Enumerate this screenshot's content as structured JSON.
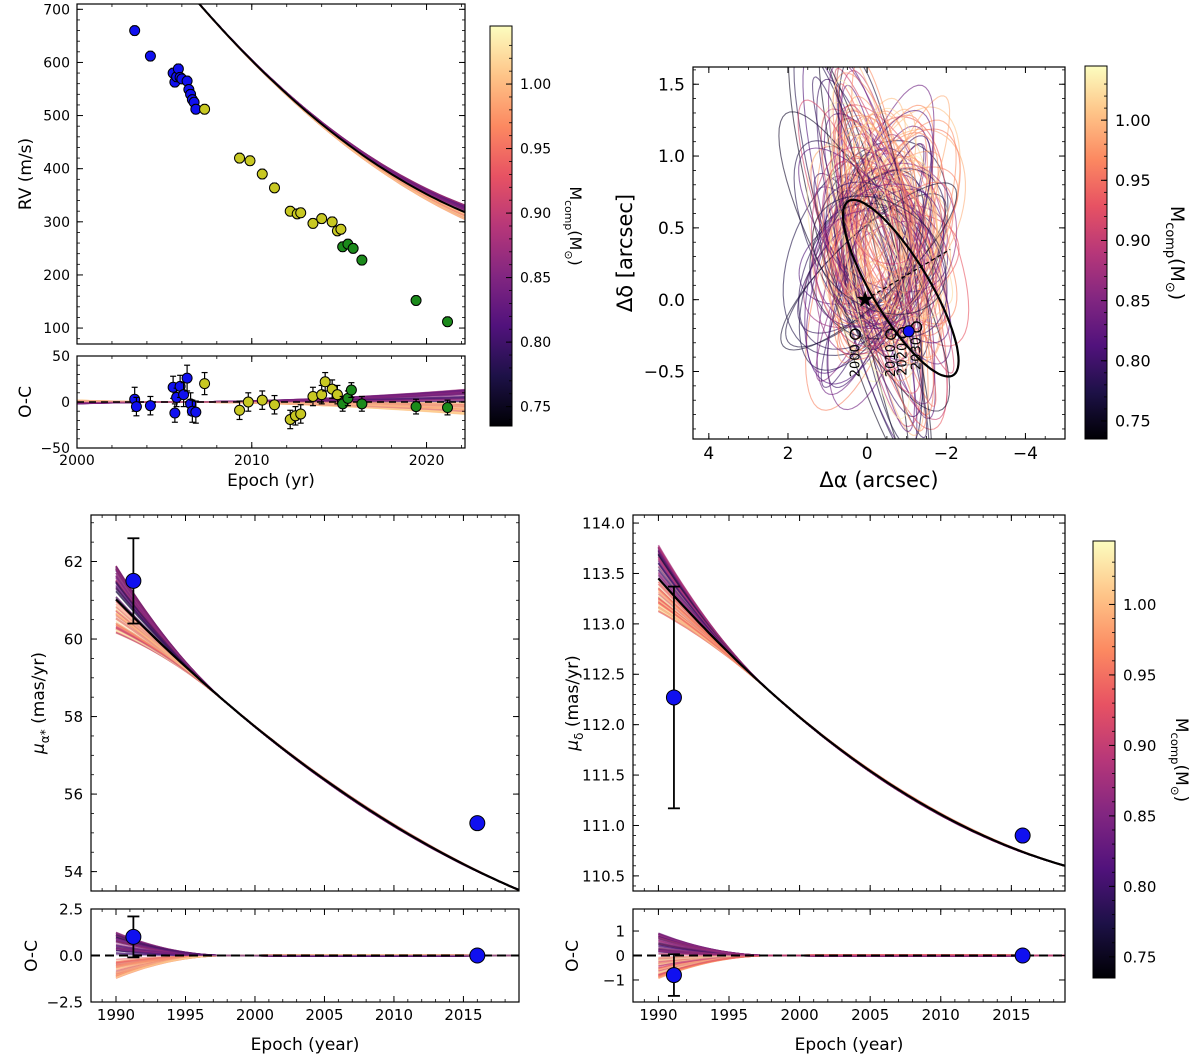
{
  "colorbar": {
    "label_main": "M",
    "label_sub": "comp",
    "label_unit": "(M",
    "label_sun_sub": "⊙",
    "label_close": ")",
    "range": [
      0.735,
      1.045
    ],
    "ticks": [
      "0.75",
      "0.80",
      "0.85",
      "0.90",
      "0.95",
      "1.00"
    ],
    "tick_values": [
      0.75,
      0.8,
      0.85,
      0.9,
      0.95,
      1.0
    ],
    "colormap": "magma",
    "stops": [
      "#000004",
      "#1d1147",
      "#51127c",
      "#822681",
      "#b73779",
      "#e75263",
      "#fc8961",
      "#fec488",
      "#fcfdbf"
    ]
  },
  "chart_data": [
    {
      "id": "rv",
      "type": "scatter",
      "ylabel": "RV (m/s)",
      "xlim": [
        2000,
        2022.2
      ],
      "ylim": [
        70,
        710
      ],
      "yticks": [
        "100",
        "200",
        "300",
        "400",
        "500",
        "600",
        "700"
      ],
      "ytick_values": [
        100,
        200,
        300,
        400,
        500,
        600,
        700
      ],
      "model": {
        "a": 1013.6,
        "b": -48.92,
        "c": 0.7922,
        "t0": 2000
      },
      "series": [
        {
          "name": "blue",
          "color": "#1010f0",
          "x": [
            2003.3,
            2004.2,
            2005.5,
            2005.6,
            2005.7,
            2005.8,
            2005.9,
            2006.0,
            2006.3,
            2006.4,
            2006.5,
            2006.6,
            2006.7,
            2006.8
          ],
          "y": [
            660,
            612,
            580,
            563,
            573,
            588,
            572,
            569,
            565,
            549,
            540,
            530,
            525,
            512
          ]
        },
        {
          "name": "yellow",
          "color": "#c8c822",
          "x": [
            2007.3,
            2009.3,
            2009.9,
            2010.6,
            2011.3,
            2012.2,
            2012.6,
            2012.8,
            2013.5,
            2014.0,
            2014.6,
            2014.9,
            2015.1
          ],
          "y": [
            512,
            420,
            415,
            390,
            364,
            320,
            315,
            317,
            297,
            306,
            300,
            283,
            286
          ]
        },
        {
          "name": "green",
          "color": "#1b8a1b",
          "x": [
            2015.2,
            2015.5,
            2015.8,
            2016.3,
            2019.4,
            2021.2
          ],
          "y": [
            253,
            258,
            250,
            228,
            152,
            112
          ]
        }
      ]
    },
    {
      "id": "rv_oc",
      "type": "scatter",
      "ylabel": "O-C",
      "xlabel": "Epoch (yr)",
      "xlim": [
        2000,
        2022.2
      ],
      "ylim": [
        -50,
        50
      ],
      "yticks": [
        "−50",
        "0",
        "50"
      ],
      "ytick_values": [
        -50,
        0,
        50
      ],
      "xticks": [
        "2000",
        "2010",
        "2020"
      ],
      "xtick_values": [
        2000,
        2010,
        2020
      ],
      "series": [
        {
          "name": "blue",
          "color": "#1010f0",
          "x": [
            2003.3,
            2003.4,
            2004.2,
            2005.5,
            2005.6,
            2005.7,
            2005.9,
            2006.1,
            2006.3,
            2006.5,
            2006.6,
            2006.8
          ],
          "y": [
            3,
            -5,
            -4,
            16,
            -12,
            5,
            17,
            8,
            26,
            -2,
            -10,
            -11
          ],
          "err": [
            13,
            10,
            10,
            12,
            10,
            10,
            12,
            13,
            14,
            12,
            12,
            12
          ]
        },
        {
          "name": "yellow",
          "color": "#c8c822",
          "x": [
            2007.3,
            2009.3,
            2009.8,
            2010.6,
            2011.3,
            2012.2,
            2012.5,
            2012.8,
            2013.5,
            2014.0,
            2014.2,
            2014.6,
            2014.9
          ],
          "y": [
            20,
            -9,
            0,
            2,
            -3,
            -19,
            -15,
            -13,
            6,
            8,
            22,
            14,
            8
          ],
          "err": [
            12,
            10,
            10,
            10,
            10,
            10,
            10,
            10,
            10,
            10,
            10,
            10,
            10
          ]
        },
        {
          "name": "green",
          "color": "#1b8a1b",
          "x": [
            2015.2,
            2015.5,
            2015.7,
            2016.3,
            2019.4,
            2021.2
          ],
          "y": [
            -2,
            4,
            13,
            -2,
            -5,
            -6
          ],
          "err": [
            8,
            8,
            8,
            8,
            8,
            8
          ]
        }
      ]
    },
    {
      "id": "orbit",
      "type": "line",
      "xlabel": "Δα (arcsec)",
      "ylabel": "Δδ [arcsec]",
      "xlim": [
        4.4,
        -5.0
      ],
      "ylim": [
        -0.97,
        1.62
      ],
      "xticks": [
        "4",
        "2",
        "0",
        "−2",
        "−4"
      ],
      "xtick_values": [
        4,
        2,
        0,
        -2,
        -4
      ],
      "yticks": [
        "−0.5",
        "0.0",
        "0.5",
        "1.0",
        "1.5"
      ],
      "ytick_values": [
        -0.5,
        0,
        0.5,
        1.0,
        1.5
      ],
      "star": [
        0.05,
        0.0
      ],
      "current_position": [
        -1.05,
        -0.22
      ],
      "epoch_markers": [
        {
          "label": "2000",
          "x": 0.3,
          "y": -0.24
        },
        {
          "label": "2010",
          "x": -0.6,
          "y": -0.24
        },
        {
          "label": "2020",
          "x": -0.9,
          "y": -0.23
        },
        {
          "label": "2030",
          "x": -1.25,
          "y": -0.19
        }
      ]
    },
    {
      "id": "pmra",
      "type": "scatter",
      "ylabel": "μα* (mas/yr)",
      "xlim": [
        1988.2,
        2019.0
      ],
      "ylim": [
        53.5,
        63.2
      ],
      "yticks": [
        "54",
        "56",
        "58",
        "60",
        "62"
      ],
      "ytick_values": [
        54,
        56,
        58,
        60,
        62
      ],
      "model": {
        "a": 61.02,
        "b": -0.3643,
        "c": 0.00365,
        "t0": 1990
      },
      "points": [
        {
          "x": 1991.25,
          "y": 61.5,
          "err": 1.1
        },
        {
          "x": 2016.0,
          "y": 55.25,
          "err": 0.05
        }
      ]
    },
    {
      "id": "pmra_oc",
      "type": "scatter",
      "ylabel": "O-C",
      "xlabel": "Epoch (year)",
      "xlim": [
        1988.2,
        2019.0
      ],
      "ylim": [
        -2.5,
        2.5
      ],
      "yticks": [
        "−2.5",
        "0.0",
        "2.5"
      ],
      "ytick_values": [
        -2.5,
        0,
        2.5
      ],
      "xticks": [
        "1990",
        "1995",
        "2000",
        "2005",
        "2010",
        "2015"
      ],
      "xtick_values": [
        1990,
        1995,
        2000,
        2005,
        2010,
        2015
      ],
      "points": [
        {
          "x": 1991.25,
          "y": 1.0,
          "err": 1.1
        },
        {
          "x": 2016.0,
          "y": 0.0,
          "err": 0.05
        }
      ]
    },
    {
      "id": "pmdec",
      "type": "scatter",
      "ylabel": "μδ (mas/yr)",
      "xlim": [
        1988.2,
        2018.8
      ],
      "ylim": [
        110.35,
        114.08
      ],
      "yticks": [
        "110.5",
        "111.0",
        "111.5",
        "112.0",
        "112.5",
        "113.0",
        "113.5",
        "114.0"
      ],
      "ytick_values": [
        110.5,
        111.0,
        111.5,
        112.0,
        112.5,
        113.0,
        113.5,
        114.0
      ],
      "model": {
        "a": 113.45,
        "b": -0.158,
        "c": 0.00205,
        "t0": 1990
      },
      "points": [
        {
          "x": 1991.1,
          "y": 112.27,
          "err": 1.1
        },
        {
          "x": 2015.8,
          "y": 110.9,
          "err": 0.03
        }
      ]
    },
    {
      "id": "pmdec_oc",
      "type": "scatter",
      "ylabel": "O-C",
      "xlabel": "Epoch (year)",
      "xlim": [
        1988.2,
        2018.8
      ],
      "ylim": [
        -1.9,
        1.9
      ],
      "yticks": [
        "−1",
        "0",
        "1"
      ],
      "ytick_values": [
        -1,
        0,
        1
      ],
      "xticks": [
        "1990",
        "1995",
        "2000",
        "2005",
        "2010",
        "2015"
      ],
      "xtick_values": [
        1990,
        1995,
        2000,
        2005,
        2010,
        2015
      ],
      "points": [
        {
          "x": 1991.1,
          "y": -0.8,
          "err": 0.85
        },
        {
          "x": 2015.8,
          "y": 0.0,
          "err": 0.03
        }
      ]
    }
  ]
}
